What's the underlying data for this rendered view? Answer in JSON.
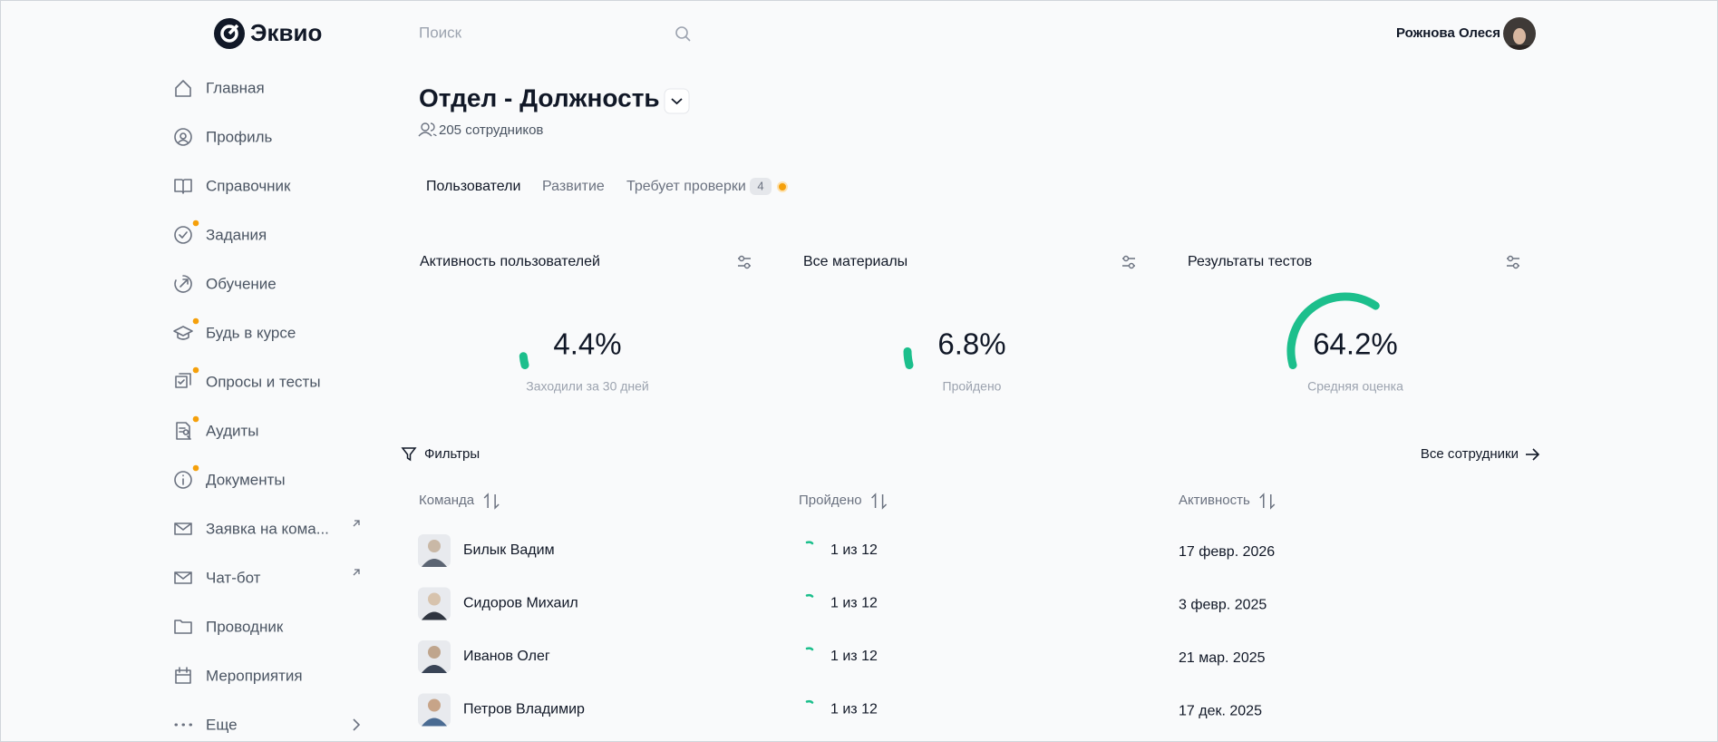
{
  "header": {
    "logo": "Эквио",
    "search_placeholder": "Поиск",
    "user_name": "Рожнова Олеся"
  },
  "nav": [
    "Главная",
    "Профиль",
    "Справочник",
    "Задания",
    "Обучение",
    "Будь в курсе",
    "Опросы и тесты",
    "Аудиты",
    "Документы",
    "Заявка на кома...",
    "Чат-бот",
    "Проводник",
    "Мероприятия",
    "Еще"
  ],
  "page": {
    "title": "Отдел - Должность",
    "employees": "205 сотрудников"
  },
  "tabs": {
    "items": [
      "Пользователи",
      "Развитие",
      "Требует проверки"
    ],
    "badge": "4"
  },
  "cards": [
    {
      "title": "Активность пользователей",
      "value": 4.4,
      "value_label": "4.4%",
      "subtitle": "Заходили за 30 дней"
    },
    {
      "title": "Все материалы",
      "value": 6.8,
      "value_label": "6.8%",
      "subtitle": "Пройдено"
    },
    {
      "title": "Результаты тестов",
      "value": 64.2,
      "value_label": "64.2%",
      "subtitle": "Средняя оценка"
    }
  ],
  "toolbar": {
    "filters": "Фильтры",
    "all_employees": "Все сотрудники"
  },
  "table": {
    "columns": [
      "Команда",
      "Пройдено",
      "Активность"
    ],
    "rows": [
      [
        "Билык Вадим",
        "1 из 12",
        "17 февр. 2026"
      ],
      [
        "Сидоров Михаил",
        "1 из 12",
        "3 февр. 2025"
      ],
      [
        "Иванов Олег",
        "1 из 12",
        "21 мар. 2025"
      ],
      [
        "Петров Владимир",
        "1 из 12",
        "17 дек. 2025"
      ]
    ]
  }
}
